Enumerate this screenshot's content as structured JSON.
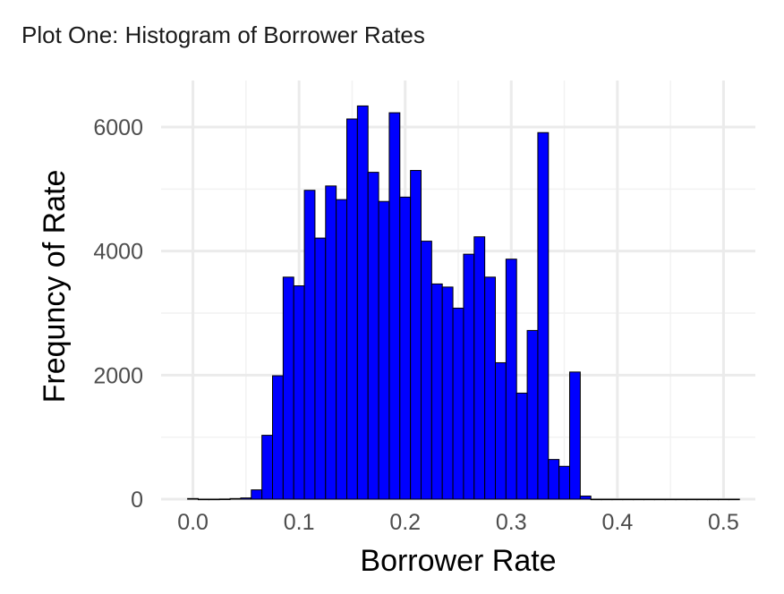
{
  "chart_data": {
    "type": "bar",
    "title": "Plot One: Histogram of Borrower Rates",
    "xlabel": "Borrower Rate",
    "ylabel": "Frequncy of Rate",
    "xlim": [
      -0.03,
      0.53
    ],
    "ylim": [
      0,
      6750
    ],
    "x_ticks": [
      0.0,
      0.1,
      0.2,
      0.3,
      0.4,
      0.5
    ],
    "x_tick_labels": [
      "0.0",
      "0.1",
      "0.2",
      "0.3",
      "0.4",
      "0.5"
    ],
    "y_ticks": [
      0,
      2000,
      4000,
      6000
    ],
    "y_tick_labels": [
      "0",
      "2000",
      "4000",
      "6000"
    ],
    "y_minor_ticks": [
      1000,
      3000,
      5000
    ],
    "x_minor_ticks": [
      0.05,
      0.15,
      0.25,
      0.35,
      0.45
    ],
    "grid": true,
    "bin_width": 0.01,
    "bin_start": -0.005,
    "bar_fill": "#0000ff",
    "bar_outline": "#000000",
    "values": [
      10,
      0,
      0,
      2,
      10,
      20,
      150,
      1030,
      1990,
      3580,
      3440,
      4980,
      4210,
      5050,
      4830,
      6130,
      6340,
      5270,
      4800,
      6230,
      4870,
      5300,
      4160,
      3470,
      3420,
      3080,
      3950,
      4230,
      3580,
      2200,
      3870,
      1710,
      2720,
      5910,
      640,
      530,
      2050,
      50,
      0,
      0,
      0,
      0,
      0,
      0,
      0,
      0,
      0,
      0,
      0,
      0,
      0,
      0
    ]
  }
}
